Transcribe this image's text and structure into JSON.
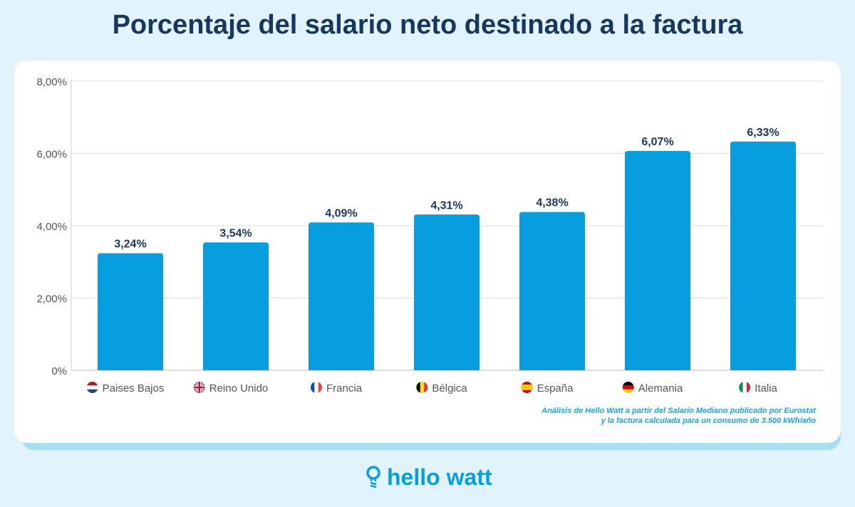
{
  "title": "Porcentaje del salario neto destinado a la factura",
  "chart_data": {
    "type": "bar",
    "title": "Porcentaje del salario neto destinado a la factura",
    "categories": [
      "Paises Bajos",
      "Reino Unido",
      "Francia",
      "Bélgica",
      "España",
      "Alemania",
      "Italia"
    ],
    "flags": [
      "flag-netherlands-icon",
      "flag-uk-icon",
      "flag-france-icon",
      "flag-belgium-icon",
      "flag-spain-icon",
      "flag-germany-icon",
      "flag-italy-icon"
    ],
    "values": [
      3.24,
      3.54,
      4.09,
      4.31,
      4.38,
      6.07,
      6.33
    ],
    "data_labels": [
      "3,24%",
      "3,54%",
      "4,09%",
      "4,31%",
      "4,38%",
      "6,07%",
      "6,33%"
    ],
    "yticks": [
      0,
      2,
      4,
      6,
      8
    ],
    "ytick_labels": [
      "0%",
      "2,00%",
      "4,00%",
      "6,00%",
      "8,00%"
    ],
    "ylim": [
      0,
      8
    ],
    "grid": true,
    "bar_color": "#079ee0"
  },
  "note": [
    "Análisis de Hello Watt a partir del Salario Mediano publicado por Eurostat",
    "y la factura calculada para un consumo de 3.500 kWh/año"
  ],
  "logo": {
    "text": "hello watt",
    "icon": "lightbulb-icon"
  }
}
